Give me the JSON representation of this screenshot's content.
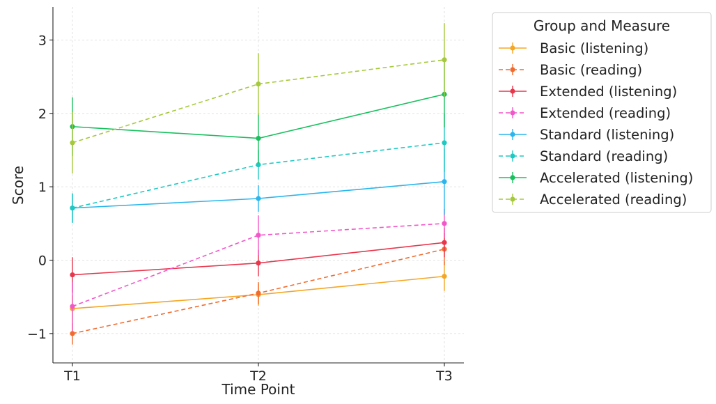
{
  "chart_data": {
    "type": "line",
    "title": "",
    "xlabel": "Time Point",
    "ylabel": "Score",
    "categories": [
      "T1",
      "T2",
      "T3"
    ],
    "ylim": [
      -1.4,
      3.45
    ],
    "yticks": [
      -1,
      0,
      1,
      2,
      3
    ],
    "ytick_labels": [
      "−1",
      "0",
      "1",
      "2",
      "3"
    ],
    "grid": true,
    "legend": {
      "title": "Group and Measure",
      "placement": "outside-right-top"
    },
    "series": [
      {
        "name": "Basic (listening)",
        "color": "#f5a623",
        "style": "solid",
        "values": [
          -0.66,
          -0.47,
          -0.22
        ],
        "err": [
          0.18,
          0.15,
          0.2
        ]
      },
      {
        "name": "Basic (reading)",
        "color": "#f26b2e",
        "style": "dashed",
        "values": [
          -1.0,
          -0.45,
          0.15
        ],
        "err": [
          0.15,
          0.15,
          0.22
        ]
      },
      {
        "name": "Extended (listening)",
        "color": "#e8364c",
        "style": "solid",
        "values": [
          -0.2,
          -0.04,
          0.24
        ],
        "err": [
          0.24,
          0.18,
          0.2
        ]
      },
      {
        "name": "Extended (reading)",
        "color": "#f257c9",
        "style": "dashed",
        "values": [
          -0.63,
          0.34,
          0.5
        ],
        "err": [
          0.33,
          0.27,
          0.2
        ]
      },
      {
        "name": "Standard (listening)",
        "color": "#2ab6ec",
        "style": "solid",
        "values": [
          0.71,
          0.84,
          1.07
        ],
        "err": [
          0.2,
          0.18,
          0.45
        ]
      },
      {
        "name": "Standard (reading)",
        "color": "#1ec9c3",
        "style": "dashed",
        "values": [
          0.71,
          1.3,
          1.6
        ],
        "err": [
          0.2,
          0.2,
          0.4
        ]
      },
      {
        "name": "Accelerated (listening)",
        "color": "#18c05e",
        "style": "solid",
        "values": [
          1.82,
          1.66,
          2.26
        ],
        "err": [
          0.4,
          0.34,
          0.45
        ]
      },
      {
        "name": "Accelerated (reading)",
        "color": "#a5c93a",
        "style": "dashed",
        "values": [
          1.6,
          2.4,
          2.73
        ],
        "err": [
          0.42,
          0.42,
          0.5
        ]
      }
    ]
  }
}
